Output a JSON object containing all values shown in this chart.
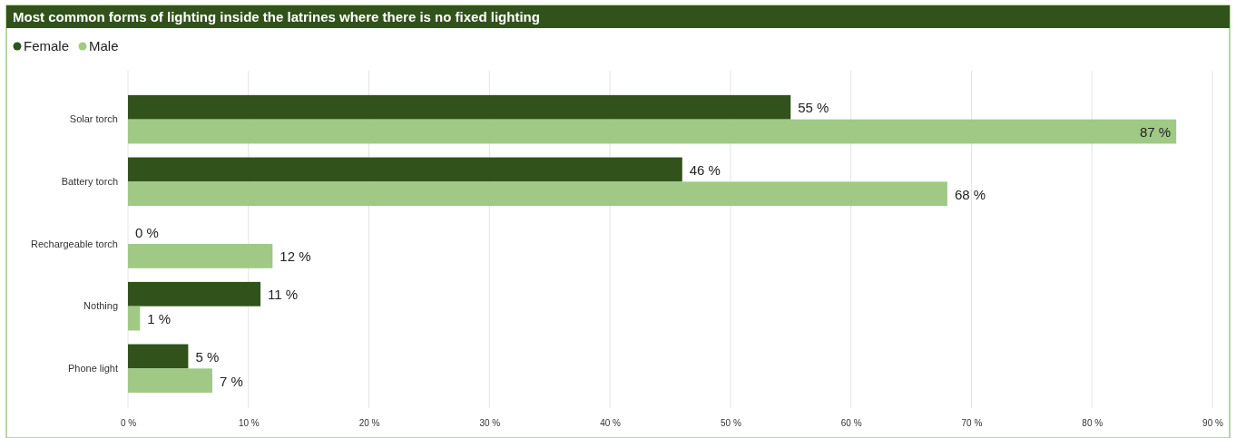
{
  "chart_data": {
    "type": "bar",
    "orientation": "horizontal",
    "title": "Most common forms of lighting inside the latrines where there is no fixed lighting",
    "categories": [
      "Solar torch",
      "Battery torch",
      "Rechargeable torch",
      "Nothing",
      "Phone light"
    ],
    "series": [
      {
        "name": "Female",
        "color": "#31521b",
        "values": [
          55,
          46,
          0,
          11,
          5
        ],
        "value_labels": [
          "55 %",
          "46 %",
          "0 %",
          "11 %",
          "5 %"
        ]
      },
      {
        "name": "Male",
        "color": "#a0c985",
        "values": [
          87,
          68,
          12,
          1,
          7
        ],
        "value_labels": [
          "87 %",
          "68 %",
          "12 %",
          "1 %",
          "7 %"
        ]
      }
    ],
    "xlim": [
      0,
      90
    ],
    "xticks": [
      {
        "value": 0,
        "label": "0 %"
      },
      {
        "value": 10,
        "label": "10 %"
      },
      {
        "value": 20,
        "label": "20 %"
      },
      {
        "value": 30,
        "label": "30 %"
      },
      {
        "value": 40,
        "label": "40 %"
      },
      {
        "value": 50,
        "label": "50 %"
      },
      {
        "value": 60,
        "label": "60 %"
      },
      {
        "value": 70,
        "label": "70 %"
      },
      {
        "value": 80,
        "label": "80 %"
      },
      {
        "value": 90,
        "label": "90 %"
      }
    ],
    "grid": "x",
    "legend": "top left"
  }
}
